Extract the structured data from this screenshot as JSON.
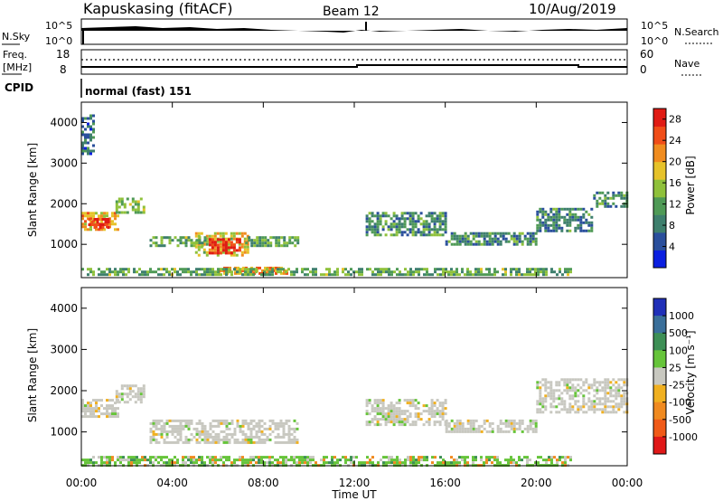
{
  "header": {
    "station": "Kapuskasing (fitACF)",
    "beam": "Beam 12",
    "date": "10/Aug/2019"
  },
  "noise_panel": {
    "left_label": "N.Sky",
    "right_label": "N.Search",
    "left_ticks": [
      "10^5",
      "10^0"
    ],
    "right_ticks": [
      "10^5",
      "10^0"
    ]
  },
  "freq_panel": {
    "left_label_1": "Freq.",
    "left_label_2": "[MHz]",
    "right_label": "Nave",
    "left_ticks": [
      "18",
      "8"
    ],
    "right_ticks": [
      "60",
      "0"
    ]
  },
  "cpid_panel": {
    "label": "CPID",
    "mode_text": "normal (fast) 151"
  },
  "colors": {
    "power_scale": [
      "#0b1fe0",
      "#2a4f9c",
      "#3e7f6d",
      "#4f9a56",
      "#8fc13b",
      "#e6c22a",
      "#f08c1f",
      "#f04d18",
      "#e01b14"
    ],
    "velocity_scale": [
      "#2030b8",
      "#3a6f9a",
      "#3d8f55",
      "#66c43a",
      "#c8c8c0",
      "#f0b020",
      "#f08a20",
      "#f05a18",
      "#e01818"
    ]
  },
  "chart_data": [
    {
      "type": "heatmap",
      "panel": "power",
      "ylabel": "Slant Range [km]",
      "ylim": [
        180,
        4500
      ],
      "y_ticks": [
        "1000",
        "2000",
        "3000",
        "4000"
      ],
      "xlim": [
        0,
        24
      ],
      "x_ticks": [
        "00:00",
        "04:00",
        "08:00",
        "12:00",
        "16:00",
        "20:00",
        "00:00"
      ],
      "colorbar_label": "Power [dB]",
      "colorbar_ticks": [
        "4",
        "8",
        "12",
        "16",
        "20",
        "24",
        "28"
      ],
      "colorbar_range": [
        0,
        30
      ],
      "regions": [
        {
          "t0": 0.0,
          "t1": 1.6,
          "r0": 1350,
          "r1": 1800,
          "v": 20
        },
        {
          "t0": 0.3,
          "t1": 1.2,
          "r0": 1400,
          "r1": 1650,
          "v": 28
        },
        {
          "t0": 1.5,
          "t1": 2.8,
          "r0": 1750,
          "r1": 2150,
          "v": 13
        },
        {
          "t0": 5.0,
          "t1": 7.3,
          "r0": 750,
          "r1": 1300,
          "v": 18
        },
        {
          "t0": 5.6,
          "t1": 7.0,
          "r0": 750,
          "r1": 1150,
          "v": 28
        },
        {
          "t0": 3.0,
          "t1": 5.5,
          "r0": 950,
          "r1": 1200,
          "v": 12
        },
        {
          "t0": 7.2,
          "t1": 9.5,
          "r0": 950,
          "r1": 1200,
          "v": 12
        },
        {
          "t0": 6.0,
          "t1": 9.0,
          "r0": 250,
          "r1": 450,
          "v": 22
        },
        {
          "t0": 0.0,
          "t1": 21.5,
          "r0": 220,
          "r1": 420,
          "v": 12
        },
        {
          "t0": 12.5,
          "t1": 16.0,
          "r0": 1200,
          "r1": 1800,
          "v": 10
        },
        {
          "t0": 16.0,
          "t1": 20.0,
          "r0": 1000,
          "r1": 1300,
          "v": 9
        },
        {
          "t0": 20.0,
          "t1": 22.5,
          "r0": 1300,
          "r1": 1900,
          "v": 9
        },
        {
          "t0": 22.5,
          "t1": 24.0,
          "r0": 1900,
          "r1": 2300,
          "v": 10
        },
        {
          "t0": 0.0,
          "t1": 0.5,
          "r0": 3200,
          "r1": 4200,
          "v": 7
        }
      ]
    },
    {
      "type": "heatmap",
      "panel": "velocity",
      "ylabel": "Slant Range [km]",
      "ylim": [
        180,
        4500
      ],
      "y_ticks": [
        "1000",
        "2000",
        "3000",
        "4000"
      ],
      "xlim": [
        0,
        24
      ],
      "x_ticks": [
        "00:00",
        "04:00",
        "08:00",
        "12:00",
        "16:00",
        "20:00",
        "00:00"
      ],
      "xlabel": "Time UT",
      "colorbar_label": "Velocity [m s⁻¹]",
      "colorbar_ticks": [
        "1000",
        "500",
        "100",
        "25",
        "-25",
        "-100",
        "-500",
        "-1000"
      ],
      "regions": [
        {
          "t0": 0.0,
          "t1": 1.6,
          "r0": 1350,
          "r1": 1800,
          "v": 0
        },
        {
          "t0": 1.5,
          "t1": 2.8,
          "r0": 1750,
          "r1": 2150,
          "v": 0
        },
        {
          "t0": 3.0,
          "t1": 9.5,
          "r0": 750,
          "r1": 1300,
          "v": 0
        },
        {
          "t0": 0.0,
          "t1": 21.5,
          "r0": 220,
          "r1": 420,
          "v": 60
        },
        {
          "t0": 12.5,
          "t1": 16.0,
          "r0": 1200,
          "r1": 1800,
          "v": 0
        },
        {
          "t0": 16.0,
          "t1": 20.0,
          "r0": 1000,
          "r1": 1300,
          "v": 0
        },
        {
          "t0": 20.0,
          "t1": 24.0,
          "r0": 1500,
          "r1": 2300,
          "v": 0
        }
      ]
    }
  ]
}
